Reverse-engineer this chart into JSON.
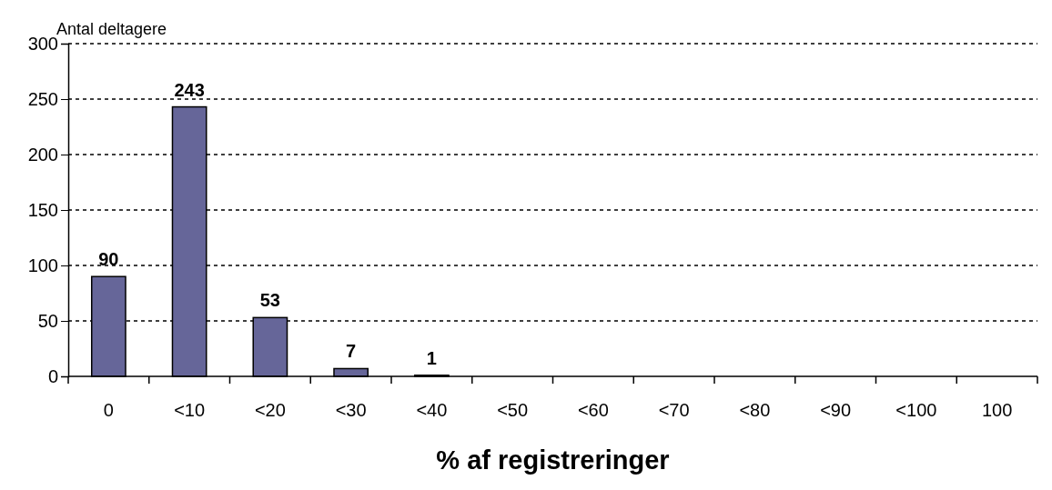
{
  "chart_data": {
    "type": "bar",
    "ylabel": "Antal deltagere",
    "xlabel": "% af registreringer",
    "categories": [
      "0",
      "<10",
      "<20",
      "<30",
      "<40",
      "<50",
      "<60",
      "<70",
      "<80",
      "<90",
      "<100",
      "100"
    ],
    "values": [
      90,
      243,
      53,
      7,
      1,
      0,
      0,
      0,
      0,
      0,
      0,
      0
    ],
    "value_labels": [
      "90",
      "243",
      "53",
      "7",
      "1",
      null,
      null,
      null,
      null,
      null,
      null,
      null
    ],
    "color": "#666699",
    "ylim": [
      0,
      300
    ],
    "yticks": [
      0,
      50,
      100,
      150,
      200,
      250,
      300
    ],
    "grid": "y"
  }
}
